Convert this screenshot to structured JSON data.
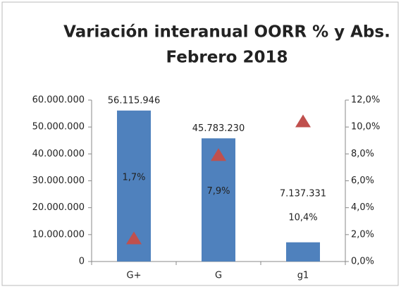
{
  "chart_data": {
    "type": "bar",
    "title": "Variación interanual OORR % y Abs.",
    "subtitle": "Febrero 2018",
    "categories": [
      "G+",
      "G",
      "g1"
    ],
    "series": [
      {
        "name": "Abs.",
        "type": "bar",
        "color": "#4f81bd",
        "values": [
          56115946,
          45783230,
          7137331
        ],
        "value_labels": [
          "56.115.946",
          "45.783.230",
          "7.137.331"
        ]
      },
      {
        "name": "%",
        "type": "scatter",
        "axis": "y2",
        "color": "#c0504d",
        "values": [
          1.7,
          7.9,
          10.4
        ],
        "value_labels": [
          "1,7%",
          "7,9%",
          "10,4%"
        ]
      }
    ],
    "ylim": [
      0,
      60000000
    ],
    "yticks": [
      0,
      {
        "value": 10000000,
        "label": "10.000.000"
      },
      {
        "value": 20000000,
        "label": "20.000.000"
      },
      {
        "value": 30000000,
        "label": "30.000.000"
      },
      {
        "value": 40000000,
        "label": "40.000.000"
      },
      {
        "value": 50000000,
        "label": "50.000.000"
      },
      {
        "value": 60000000,
        "label": "60.000.000"
      }
    ],
    "y2lim": [
      0,
      12
    ],
    "y2ticks": [
      {
        "value": 0,
        "label": "0,0%"
      },
      {
        "value": 2,
        "label": "2,0%"
      },
      {
        "value": 4,
        "label": "4,0%"
      },
      {
        "value": 6,
        "label": "6,0%"
      },
      {
        "value": 8,
        "label": "8,0%"
      },
      {
        "value": 10,
        "label": "10,0%"
      },
      {
        "value": 12,
        "label": "12,0%"
      }
    ]
  }
}
